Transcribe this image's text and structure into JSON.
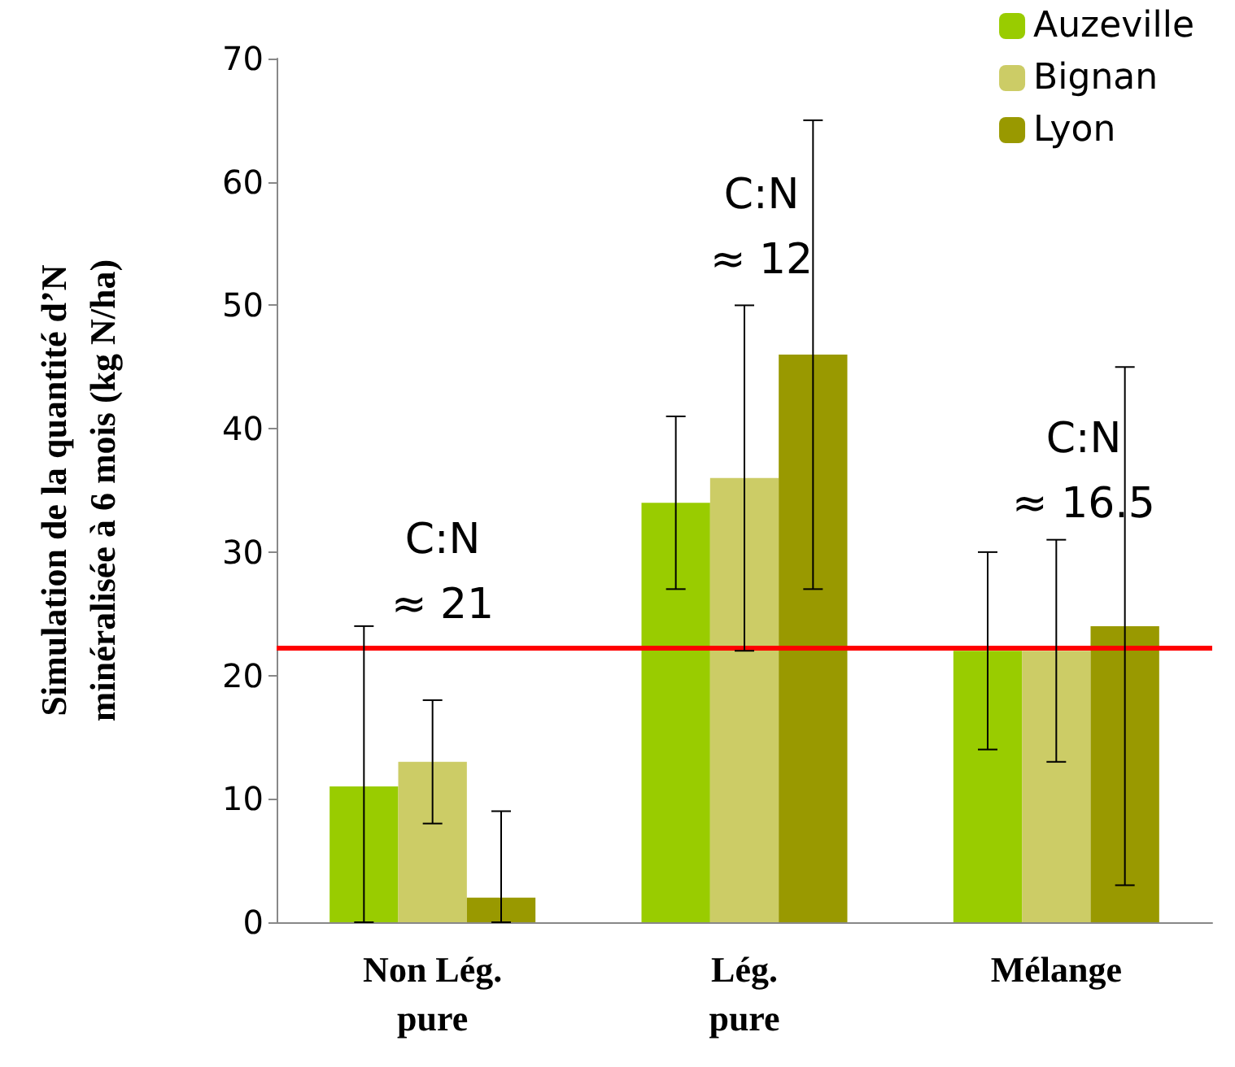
{
  "chart_data": {
    "type": "bar",
    "ylabel": "Simulation de la quantité d’N\nminéralisée à 6 mois (kg N/ha)",
    "categories": [
      "Non Lég.\npure",
      "Lég.\npure",
      "Mélange"
    ],
    "series": [
      {
        "name": "Auzeville",
        "color": "#99cc00",
        "values": [
          11,
          34,
          22
        ],
        "errors": [
          [
            0,
            24
          ],
          [
            27,
            41
          ],
          [
            14,
            30
          ]
        ]
      },
      {
        "name": "Bignan",
        "color": "#cccc66",
        "values": [
          13,
          36,
          22
        ],
        "errors": [
          [
            8,
            18
          ],
          [
            22,
            50
          ],
          [
            13,
            31
          ]
        ]
      },
      {
        "name": "Lyon",
        "color": "#999900",
        "values": [
          2,
          46,
          24
        ],
        "errors": [
          [
            0,
            9
          ],
          [
            27,
            65
          ],
          [
            3,
            45
          ]
        ]
      }
    ],
    "ylim": [
      0,
      70
    ],
    "yticks": [
      0,
      10,
      20,
      30,
      40,
      50,
      60,
      70
    ],
    "grid": false,
    "legend": "top right",
    "ref_lines": [
      {
        "axis": "y",
        "value": 22.3,
        "color": "#ff0000",
        "line_style": "solid"
      }
    ],
    "annotations": [
      "C:N\n≈ 21",
      "C:N\n≈ 12",
      "C:N\n≈ 16.5"
    ]
  }
}
